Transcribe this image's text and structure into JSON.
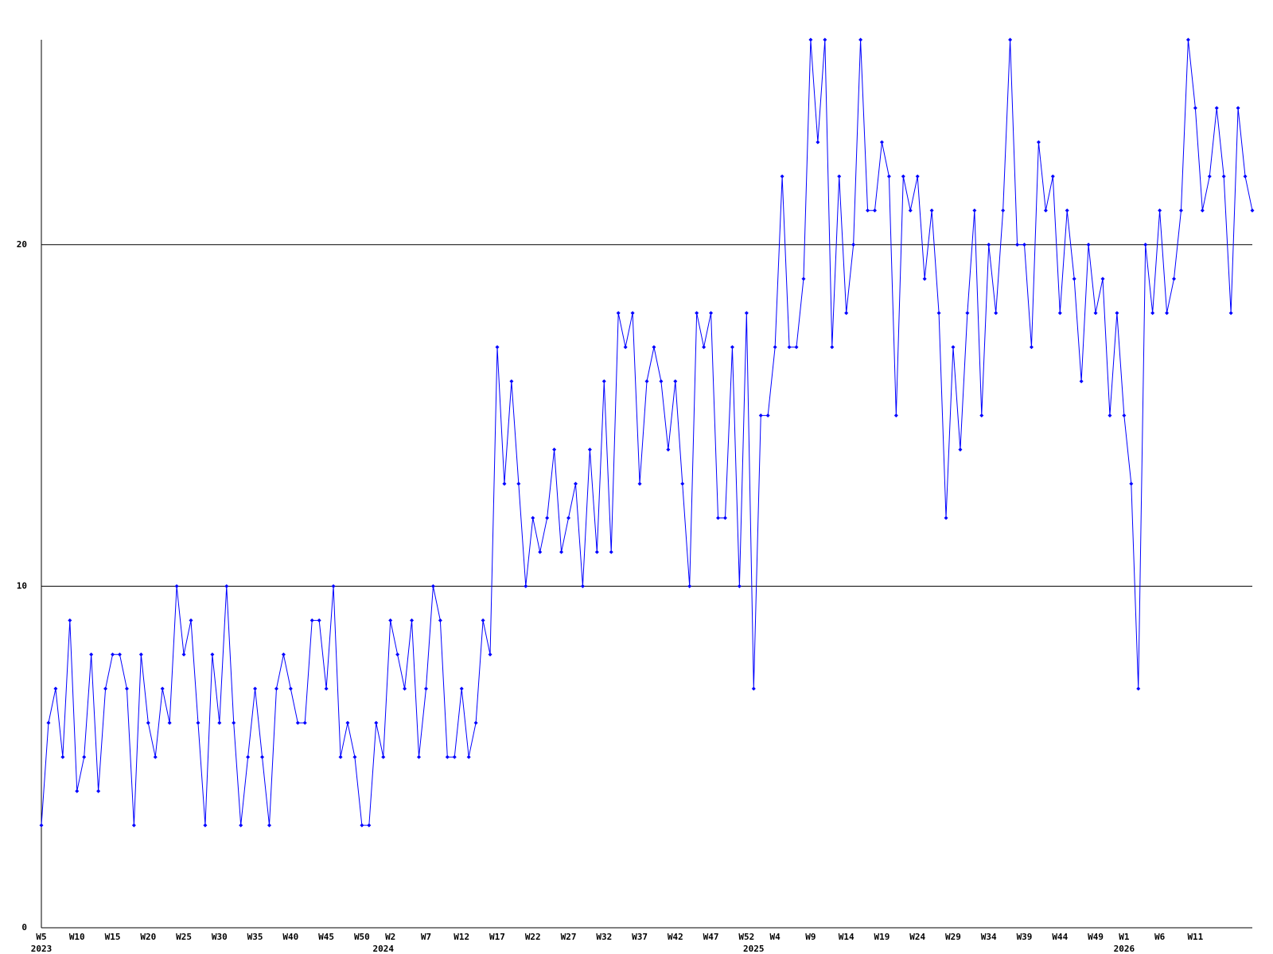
{
  "chart_data": {
    "type": "line",
    "categories": [
      "W5",
      null,
      null,
      null,
      null,
      "W10",
      null,
      null,
      null,
      null,
      "W15",
      null,
      null,
      null,
      null,
      "W20",
      null,
      null,
      null,
      null,
      "W25",
      null,
      null,
      null,
      null,
      "W30",
      null,
      null,
      null,
      null,
      "W35",
      null,
      null,
      null,
      null,
      "W40",
      null,
      null,
      null,
      null,
      "W45",
      null,
      null,
      null,
      null,
      "W50",
      null,
      null,
      null,
      "W2",
      null,
      null,
      null,
      null,
      "W7",
      null,
      null,
      null,
      null,
      "W12",
      null,
      null,
      null,
      null,
      "W17",
      null,
      null,
      null,
      null,
      "W22",
      null,
      null,
      null,
      null,
      "W27",
      null,
      null,
      null,
      null,
      "W32",
      null,
      null,
      null,
      null,
      "W37",
      null,
      null,
      null,
      null,
      "W42",
      null,
      null,
      null,
      null,
      "W47",
      null,
      null,
      null,
      null,
      "W52",
      null,
      null,
      null,
      "W4",
      null,
      null,
      null,
      null,
      "W9",
      null,
      null,
      null,
      null,
      "W14",
      null,
      null,
      null,
      null,
      "W19",
      null,
      null,
      null,
      null,
      "W24",
      null,
      null,
      null,
      null,
      "W29",
      null,
      null,
      null,
      null,
      "W34",
      null,
      null,
      null,
      null,
      "W39",
      null,
      null,
      null,
      null,
      "W44",
      null,
      null,
      null,
      null,
      "W49",
      null,
      null,
      null,
      "W1",
      null,
      null,
      null,
      null,
      "W6",
      null,
      null,
      null,
      null,
      "W11",
      null,
      null,
      null,
      null,
      null,
      null,
      null,
      null
    ],
    "years": [
      "2023",
      null,
      null,
      null,
      null,
      null,
      null,
      null,
      null,
      null,
      null,
      null,
      null,
      null,
      null,
      null,
      null,
      null,
      null,
      null,
      null,
      null,
      null,
      null,
      null,
      null,
      null,
      null,
      null,
      null,
      null,
      null,
      null,
      null,
      null,
      null,
      null,
      null,
      null,
      null,
      null,
      null,
      null,
      null,
      null,
      null,
      null,
      null,
      "2024",
      null,
      null,
      null,
      null,
      null,
      null,
      null,
      null,
      null,
      null,
      null,
      null,
      null,
      null,
      null,
      null,
      null,
      null,
      null,
      null,
      null,
      null,
      null,
      null,
      null,
      null,
      null,
      null,
      null,
      null,
      null,
      null,
      null,
      null,
      null,
      null,
      null,
      null,
      null,
      null,
      null,
      null,
      null,
      null,
      null,
      null,
      null,
      null,
      null,
      null,
      null,
      "2025",
      null,
      null,
      null,
      null,
      null,
      null,
      null,
      null,
      null,
      null,
      null,
      null,
      null,
      null,
      null,
      null,
      null,
      null,
      null,
      null,
      null,
      null,
      null,
      null,
      null,
      null,
      null,
      null,
      null,
      null,
      null,
      null,
      null,
      null,
      null,
      null,
      null,
      null,
      null,
      null,
      null,
      null,
      null,
      null,
      null,
      null,
      null,
      null,
      null,
      null,
      null,
      "2026",
      null,
      null,
      null,
      null,
      null,
      null,
      null,
      null,
      null,
      null,
      null,
      null,
      null,
      null,
      null,
      null,
      null,
      null
    ],
    "values": [
      3,
      6,
      7,
      5,
      9,
      4,
      5,
      8,
      4,
      7,
      8,
      8,
      7,
      3,
      8,
      6,
      5,
      7,
      6,
      10,
      8,
      9,
      6,
      3,
      8,
      6,
      10,
      6,
      3,
      5,
      7,
      5,
      3,
      7,
      8,
      7,
      6,
      6,
      9,
      9,
      7,
      10,
      5,
      6,
      5,
      3,
      3,
      6,
      5,
      9,
      8,
      7,
      9,
      5,
      7,
      10,
      9,
      5,
      5,
      7,
      5,
      6,
      9,
      8,
      17,
      13,
      16,
      13,
      10,
      12,
      11,
      12,
      14,
      11,
      12,
      13,
      10,
      14,
      11,
      16,
      11,
      18,
      17,
      18,
      13,
      16,
      17,
      16,
      14,
      16,
      13,
      10,
      18,
      17,
      18,
      12,
      12,
      17,
      10,
      18,
      7,
      15,
      15,
      17,
      22,
      17,
      17,
      19,
      26,
      23,
      26,
      17,
      22,
      18,
      20,
      26,
      21,
      21,
      23,
      22,
      15,
      22,
      21,
      22,
      19,
      21,
      18,
      12,
      17,
      14,
      18,
      21,
      15,
      20,
      18,
      21,
      26,
      20,
      20,
      17,
      23,
      21,
      22,
      18,
      21,
      19,
      16,
      20,
      18,
      19,
      15,
      18,
      15,
      13,
      7,
      20,
      18,
      21,
      18,
      19,
      21,
      26,
      24,
      21,
      22,
      24,
      22,
      18,
      24,
      22,
      21
    ],
    "color": "#0000ff",
    "ylim": [
      0,
      26
    ],
    "yticks": [
      0,
      10,
      20
    ],
    "grid": true
  }
}
